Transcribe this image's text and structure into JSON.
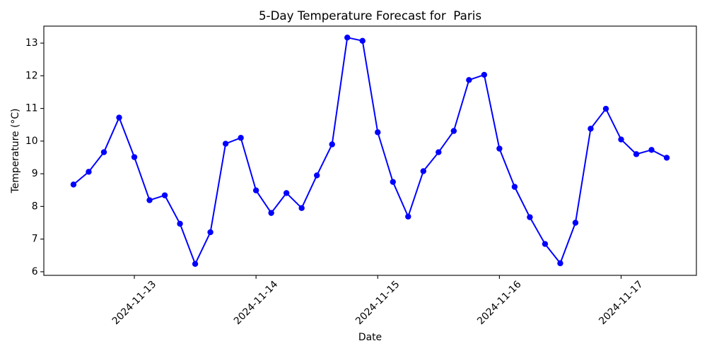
{
  "chart_data": {
    "type": "line",
    "title": "5-Day Temperature Forecast for  Paris",
    "xlabel": "Date",
    "ylabel": "Temperature (°C)",
    "x": [
      "2024-11-12 12:00",
      "2024-11-12 15:00",
      "2024-11-12 18:00",
      "2024-11-12 21:00",
      "2024-11-13 00:00",
      "2024-11-13 03:00",
      "2024-11-13 06:00",
      "2024-11-13 09:00",
      "2024-11-13 12:00",
      "2024-11-13 15:00",
      "2024-11-13 18:00",
      "2024-11-13 21:00",
      "2024-11-14 00:00",
      "2024-11-14 03:00",
      "2024-11-14 06:00",
      "2024-11-14 09:00",
      "2024-11-14 12:00",
      "2024-11-14 15:00",
      "2024-11-14 18:00",
      "2024-11-14 21:00",
      "2024-11-15 00:00",
      "2024-11-15 03:00",
      "2024-11-15 06:00",
      "2024-11-15 09:00",
      "2024-11-15 12:00",
      "2024-11-15 15:00",
      "2024-11-15 18:00",
      "2024-11-15 21:00",
      "2024-11-16 00:00",
      "2024-11-16 03:00",
      "2024-11-16 06:00",
      "2024-11-16 09:00",
      "2024-11-16 12:00",
      "2024-11-16 15:00",
      "2024-11-16 18:00",
      "2024-11-16 21:00",
      "2024-11-17 00:00",
      "2024-11-17 03:00",
      "2024-11-17 06:00",
      "2024-11-17 09:00"
    ],
    "series": [
      {
        "values": [
          8.67,
          9.06,
          9.66,
          10.72,
          9.51,
          8.19,
          8.34,
          7.47,
          6.24,
          7.21,
          9.92,
          10.1,
          8.49,
          7.8,
          8.41,
          7.95,
          8.95,
          9.9,
          13.17,
          13.07,
          10.27,
          8.75,
          7.69,
          9.08,
          9.66,
          10.31,
          11.87,
          12.03,
          9.77,
          8.6,
          7.67,
          6.85,
          6.26,
          7.5,
          10.38,
          10.99,
          10.05,
          9.6,
          9.73,
          9.49
        ],
        "color": "#0000ff",
        "marker": "circle"
      }
    ],
    "xticks": [
      "2024-11-13",
      "2024-11-14",
      "2024-11-15",
      "2024-11-16",
      "2024-11-17"
    ],
    "yticks": [
      6,
      7,
      8,
      9,
      10,
      11,
      12,
      13
    ],
    "ylim": [
      5.89,
      13.52
    ],
    "grid": false,
    "legend": "none"
  }
}
